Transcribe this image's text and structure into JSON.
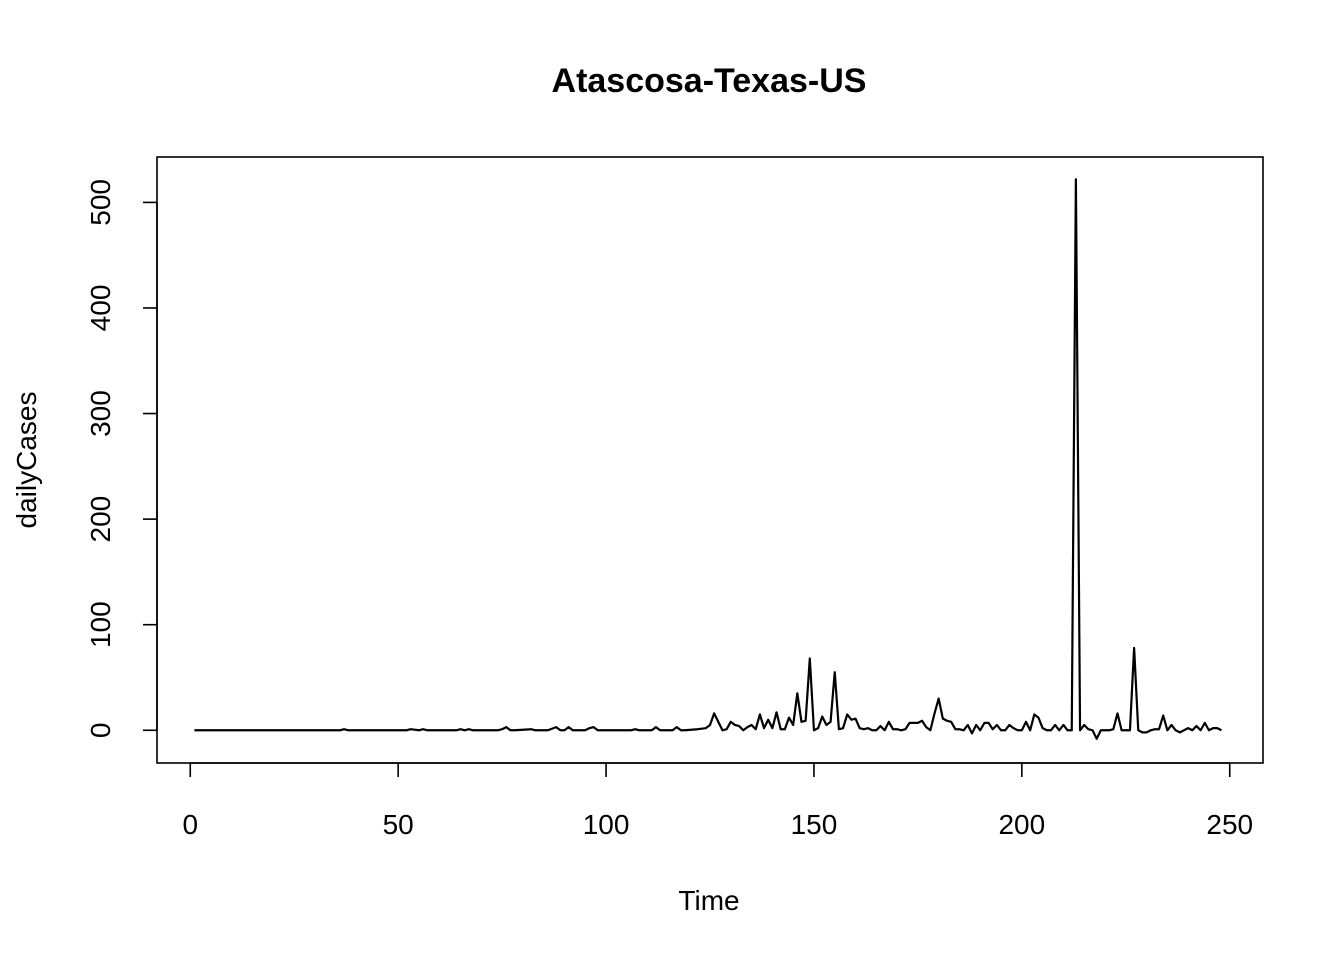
{
  "chart_data": {
    "type": "line",
    "title": "Atascosa-Texas-US",
    "xlabel": "Time",
    "ylabel": "dailyCases",
    "xlim": [
      -8,
      258
    ],
    "ylim": [
      -31,
      543
    ],
    "xticks": [
      0,
      50,
      100,
      150,
      200,
      250
    ],
    "yticks": [
      0,
      100,
      200,
      300,
      400,
      500
    ],
    "grid": false,
    "legend": "none",
    "line_color": "#000000",
    "series": [
      {
        "x": [
          1,
          10,
          20,
          30,
          36,
          37,
          38,
          45,
          52,
          53,
          55,
          56,
          57,
          60,
          64,
          65,
          66,
          67,
          68,
          70,
          74,
          75,
          76,
          77,
          78,
          82,
          83,
          86,
          88,
          89,
          90,
          91,
          92,
          95,
          96,
          97,
          98,
          100,
          106,
          107,
          108,
          111,
          112,
          113,
          116,
          117,
          118,
          119,
          122,
          124,
          125,
          126,
          127,
          128,
          129,
          130,
          131,
          132,
          133,
          134,
          135,
          136,
          137,
          138,
          139,
          140,
          141,
          142,
          143,
          144,
          145,
          146,
          147,
          148,
          149,
          150,
          151,
          152,
          153,
          154,
          155,
          156,
          157,
          158,
          159,
          160,
          161,
          162,
          163,
          164,
          165,
          166,
          167,
          168,
          169,
          170,
          171,
          172,
          173,
          174,
          175,
          176,
          177,
          178,
          179,
          180,
          181,
          182,
          183,
          184,
          185,
          186,
          187,
          188,
          189,
          190,
          191,
          192,
          193,
          194,
          195,
          196,
          197,
          198,
          199,
          200,
          201,
          202,
          203,
          204,
          205,
          206,
          207,
          208,
          209,
          210,
          211,
          212,
          213,
          214,
          215,
          216,
          217,
          218,
          219,
          220,
          221,
          222,
          223,
          224,
          225,
          226,
          227,
          228,
          229,
          230,
          231,
          232,
          233,
          234,
          235,
          236,
          237,
          238,
          239,
          240,
          241,
          242,
          243,
          244,
          245,
          246,
          247,
          248
        ],
        "values": [
          0,
          0,
          0,
          0,
          0,
          1,
          0,
          0,
          0,
          1,
          0,
          1,
          0,
          0,
          0,
          1,
          0,
          1,
          0,
          0,
          0,
          1,
          3,
          0,
          0,
          1,
          0,
          0,
          3,
          0,
          0,
          3,
          0,
          0,
          2,
          3,
          0,
          0,
          0,
          1,
          0,
          0,
          3,
          0,
          0,
          3,
          0,
          0,
          1,
          2,
          5,
          16,
          8,
          0,
          1,
          8,
          5,
          4,
          0,
          3,
          5,
          1,
          15,
          2,
          10,
          2,
          17,
          1,
          1,
          12,
          5,
          35,
          8,
          9,
          68,
          0,
          2,
          13,
          5,
          8,
          55,
          1,
          2,
          15,
          10,
          11,
          2,
          1,
          2,
          0,
          0,
          4,
          0,
          8,
          1,
          1,
          0,
          1,
          7,
          7,
          7,
          9,
          3,
          0,
          16,
          30,
          11,
          9,
          8,
          1,
          1,
          0,
          5,
          -3,
          5,
          0,
          7,
          7,
          1,
          5,
          0,
          0,
          5,
          2,
          0,
          0,
          8,
          0,
          15,
          12,
          2,
          0,
          0,
          5,
          0,
          5,
          0,
          0,
          522,
          0,
          5,
          1,
          0,
          -8,
          0,
          0,
          0,
          1,
          16,
          0,
          0,
          0,
          78,
          0,
          -2,
          -2,
          0,
          1,
          1,
          14,
          0,
          5,
          0,
          -2,
          0,
          2,
          0,
          4,
          0,
          7,
          0,
          2,
          2,
          0
        ]
      }
    ]
  }
}
